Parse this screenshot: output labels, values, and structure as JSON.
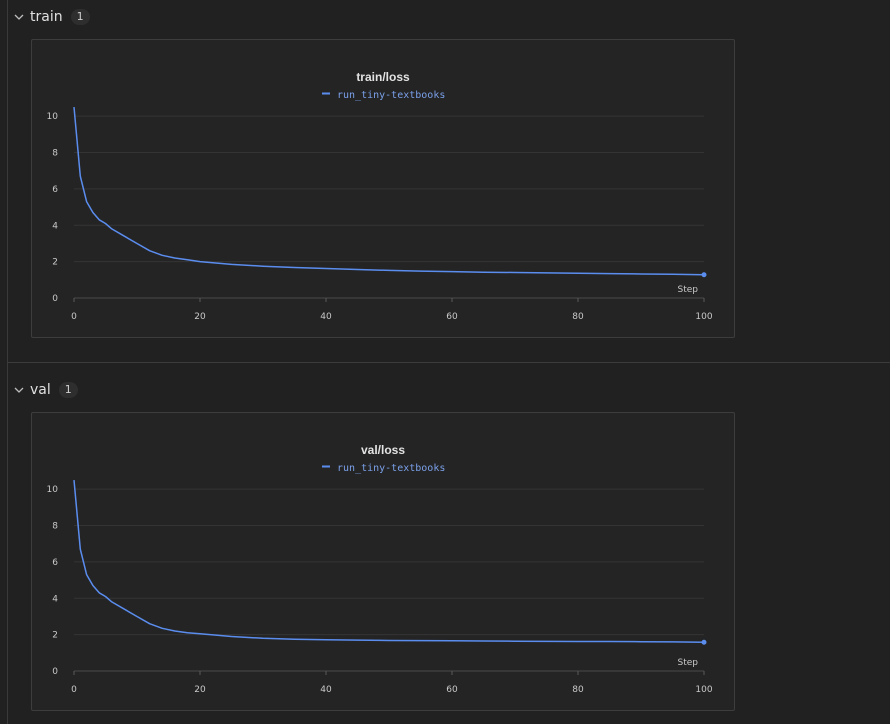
{
  "sections": [
    {
      "title": "train",
      "count": "1",
      "panel": {
        "legend": "run_tiny-textbooks",
        "chart_data": {
          "type": "line",
          "title": "train/loss",
          "xlabel": "Step",
          "ylabel": "",
          "xlim": [
            0,
            100
          ],
          "ylim": [
            0,
            11
          ],
          "xticks": [
            0,
            20,
            40,
            60,
            80,
            100
          ],
          "yticks": [
            0,
            2,
            4,
            6,
            8,
            10
          ],
          "grid": true,
          "legend_position": "top-center",
          "series": [
            {
              "name": "run_tiny-textbooks",
              "color": "#5b8def",
              "x": [
                0,
                1,
                2,
                3,
                4,
                5,
                6,
                8,
                10,
                12,
                14,
                16,
                18,
                20,
                25,
                30,
                35,
                40,
                45,
                50,
                55,
                60,
                65,
                70,
                75,
                80,
                85,
                90,
                95,
                100
              ],
              "y": [
                10.5,
                6.7,
                5.3,
                4.7,
                4.3,
                4.1,
                3.8,
                3.4,
                3.0,
                2.6,
                2.35,
                2.2,
                2.1,
                2.0,
                1.85,
                1.75,
                1.68,
                1.62,
                1.57,
                1.52,
                1.48,
                1.45,
                1.42,
                1.4,
                1.38,
                1.36,
                1.34,
                1.32,
                1.31,
                1.28
              ]
            }
          ]
        }
      }
    },
    {
      "title": "val",
      "count": "1",
      "panel": {
        "legend": "run_tiny-textbooks",
        "chart_data": {
          "type": "line",
          "title": "val/loss",
          "xlabel": "Step",
          "ylabel": "",
          "xlim": [
            0,
            100
          ],
          "ylim": [
            0,
            11
          ],
          "xticks": [
            0,
            20,
            40,
            60,
            80,
            100
          ],
          "yticks": [
            0,
            2,
            4,
            6,
            8,
            10
          ],
          "grid": true,
          "legend_position": "top-center",
          "series": [
            {
              "name": "run_tiny-textbooks",
              "color": "#5b8def",
              "x": [
                0,
                1,
                2,
                3,
                4,
                5,
                6,
                8,
                10,
                12,
                14,
                16,
                18,
                20,
                25,
                30,
                35,
                40,
                45,
                50,
                55,
                60,
                65,
                70,
                75,
                80,
                85,
                90,
                95,
                100
              ],
              "y": [
                10.5,
                6.7,
                5.3,
                4.7,
                4.3,
                4.1,
                3.8,
                3.4,
                3.0,
                2.6,
                2.35,
                2.2,
                2.1,
                2.05,
                1.9,
                1.8,
                1.75,
                1.72,
                1.7,
                1.68,
                1.67,
                1.66,
                1.65,
                1.64,
                1.63,
                1.62,
                1.62,
                1.61,
                1.6,
                1.58
              ]
            }
          ]
        }
      }
    }
  ]
}
